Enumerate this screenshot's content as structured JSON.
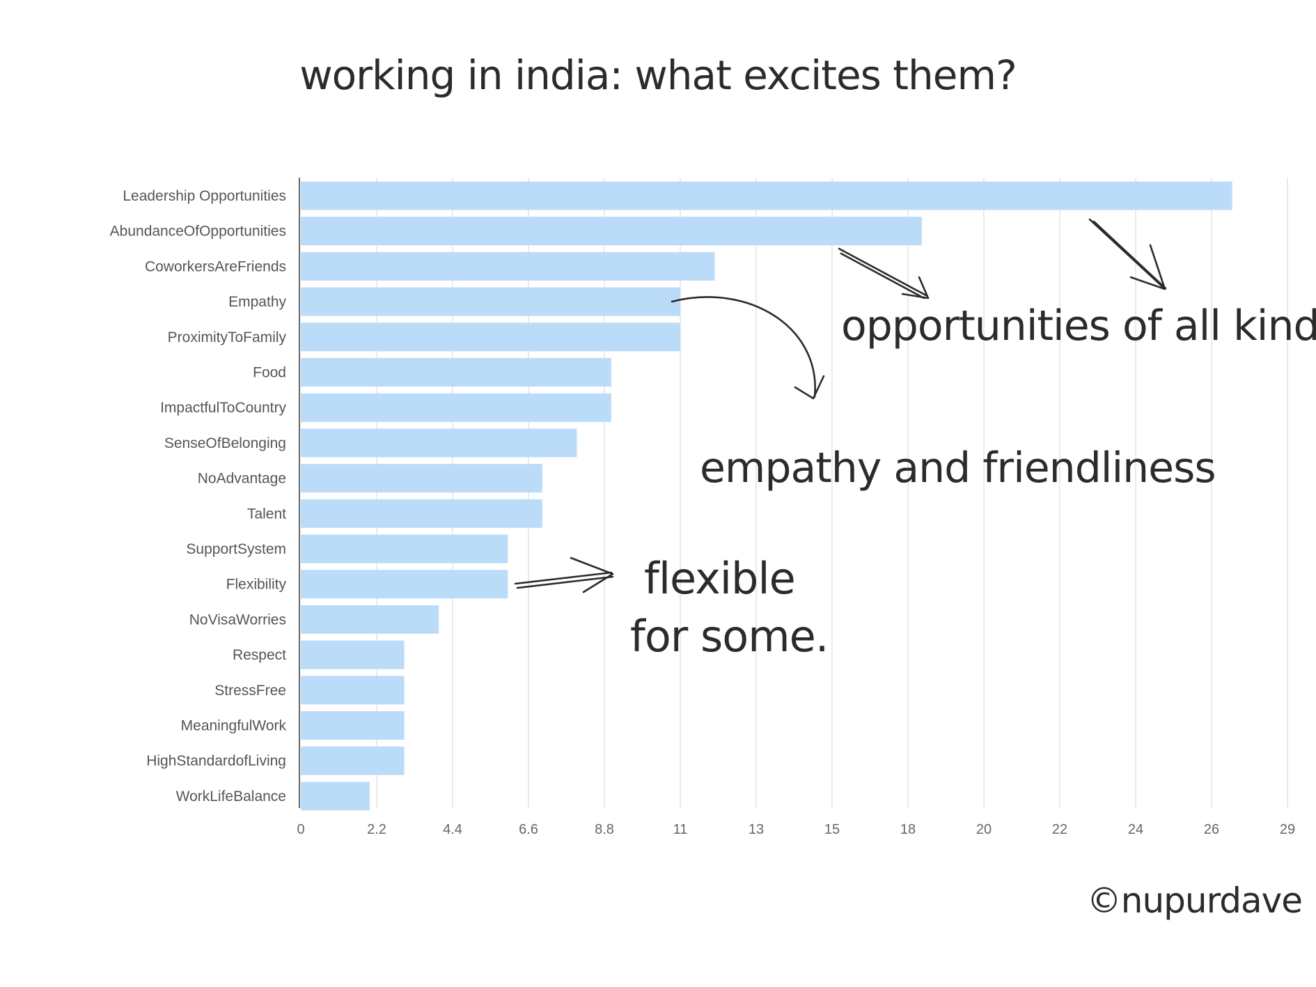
{
  "title": "working in india: what excites them?",
  "chart_data": {
    "type": "bar",
    "orientation": "horizontal",
    "categories": [
      "Leadership Opportunities",
      "AbundanceOfOpportunities",
      "CoworkersAreFriends",
      "Empathy",
      "ProximityToFamily",
      "Food",
      "ImpactfulToCountry",
      "SenseOfBelonging",
      "NoAdvantage",
      "Talent",
      "SupportSystem",
      "Flexibility",
      "NoVisaWorries",
      "Respect",
      "StressFree",
      "MeaningfulWork",
      "HighStandardofLiving",
      "WorkLifeBalance"
    ],
    "values": [
      27,
      18,
      12,
      11,
      11,
      9,
      9,
      8,
      7,
      7,
      6,
      6,
      4,
      3,
      3,
      3,
      3,
      2
    ],
    "xlim": [
      0,
      28.6
    ],
    "xticks": [
      {
        "value": 0,
        "label": "0"
      },
      {
        "value": 2.2,
        "label": "2.2"
      },
      {
        "value": 4.4,
        "label": "4.4"
      },
      {
        "value": 6.6,
        "label": "6.6"
      },
      {
        "value": 8.8,
        "label": "8.8"
      },
      {
        "value": 11,
        "label": "11"
      },
      {
        "value": 13.2,
        "label": "13"
      },
      {
        "value": 15.4,
        "label": "15"
      },
      {
        "value": 17.6,
        "label": "18"
      },
      {
        "value": 19.8,
        "label": "20"
      },
      {
        "value": 22,
        "label": "22"
      },
      {
        "value": 24.2,
        "label": "24"
      },
      {
        "value": 26.4,
        "label": "26"
      },
      {
        "value": 28.6,
        "label": "29"
      }
    ],
    "grid": true,
    "bar_color": "#bbdcf8",
    "grid_color": "#e3e3e3",
    "axis_color": "#666666"
  },
  "annotations": {
    "opportunities": "opportunities of all kinds!",
    "empathy": "empathy and friendliness",
    "flexible_line1": "flexible",
    "flexible_line2": "for some."
  },
  "credit": "©nupurdave"
}
